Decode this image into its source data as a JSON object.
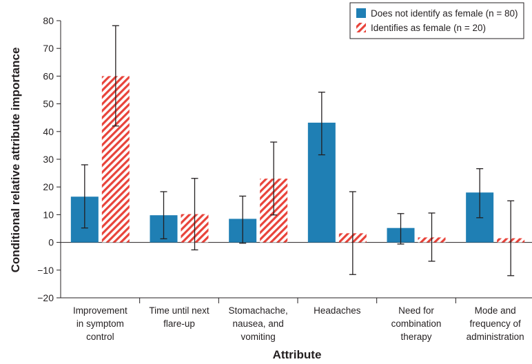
{
  "chart_data": {
    "type": "bar",
    "xlabel": "Attribute",
    "ylabel": "Conditional relative attribute importance",
    "ylim": [
      -20,
      80
    ],
    "yticks": [
      -20,
      -10,
      0,
      10,
      20,
      30,
      40,
      50,
      60,
      70,
      80
    ],
    "grid": false,
    "legend_position": "top-right",
    "categories": [
      [
        "Improvement",
        "in symptom",
        "control"
      ],
      [
        "Time until next",
        "flare-up"
      ],
      [
        "Stomachache,",
        "nausea, and",
        "vomiting"
      ],
      [
        "Headaches"
      ],
      [
        "Need for",
        "combination",
        "therapy"
      ],
      [
        "Mode and",
        "frequency of",
        "administration"
      ]
    ],
    "series": [
      {
        "name": "Does not identify as female (n = 80)",
        "color": "#1f7fb4",
        "pattern": "solid",
        "values": [
          16.5,
          9.8,
          8.5,
          43.2,
          5.2,
          18.0
        ],
        "error_low": [
          5.2,
          1.3,
          -0.3,
          31.6,
          -0.6,
          8.9
        ],
        "error_high": [
          28.0,
          18.3,
          16.7,
          54.2,
          10.4,
          26.6
        ]
      },
      {
        "name": "Identifies as female (n = 20)",
        "color": "#e8433a",
        "pattern": "diagonal-hatch",
        "values": [
          60.0,
          10.2,
          23.0,
          3.3,
          1.8,
          1.5
        ],
        "error_low": [
          42.0,
          -2.7,
          9.9,
          -11.6,
          -6.8,
          -12.0
        ],
        "error_high": [
          78.2,
          23.1,
          36.2,
          18.3,
          10.6,
          15.0
        ]
      }
    ]
  }
}
